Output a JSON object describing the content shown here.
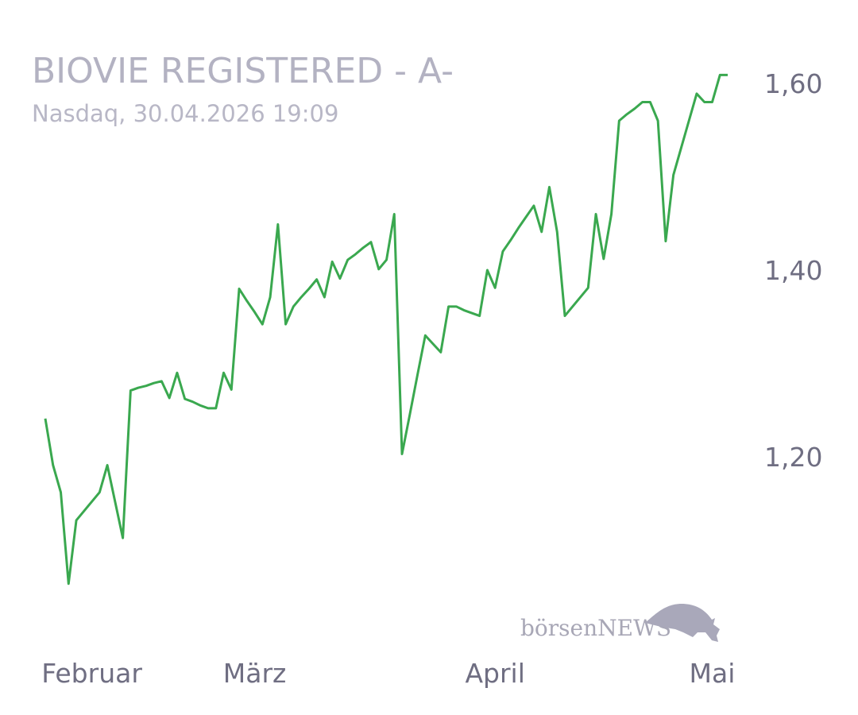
{
  "chart_data": {
    "type": "line",
    "title": "BIOVIE REGISTERED - A-",
    "subtitle": "Nasdaq, 30.04.2026 19:09",
    "watermark": "börsenNEWS",
    "categories": [
      null,
      null,
      null,
      null,
      null,
      null,
      "Februar",
      null,
      null,
      null,
      null,
      null,
      null,
      null,
      null,
      null,
      null,
      null,
      null,
      null,
      null,
      null,
      null,
      null,
      null,
      null,
      null,
      "März",
      null,
      null,
      null,
      null,
      null,
      null,
      null,
      null,
      null,
      null,
      null,
      null,
      null,
      null,
      null,
      null,
      null,
      null,
      null,
      null,
      null,
      null,
      null,
      null,
      null,
      null,
      null,
      null,
      null,
      null,
      "April",
      null,
      null,
      null,
      null,
      null,
      null,
      null,
      null,
      null,
      null,
      null,
      null,
      null,
      null,
      null,
      null,
      null,
      null,
      null,
      null,
      null,
      null,
      null,
      null,
      null,
      null,
      null,
      "Mai",
      null,
      null
    ],
    "values": [
      1.241,
      1.191,
      1.162,
      1.064,
      1.132,
      1.142,
      1.152,
      1.162,
      1.191,
      1.152,
      1.113,
      1.271,
      1.274,
      1.276,
      1.279,
      1.281,
      1.263,
      1.29,
      1.262,
      1.259,
      1.255,
      1.252,
      1.252,
      1.29,
      1.272,
      1.38,
      1.367,
      1.355,
      1.342,
      1.371,
      1.449,
      1.342,
      1.361,
      1.371,
      1.38,
      1.39,
      1.371,
      1.409,
      1.391,
      1.411,
      1.417,
      1.424,
      1.43,
      1.401,
      1.411,
      1.46,
      1.203,
      1.245,
      1.288,
      1.33,
      1.321,
      1.312,
      1.361,
      1.361,
      1.357,
      1.354,
      1.351,
      1.4,
      1.381,
      1.42,
      1.432,
      1.445,
      1.457,
      1.469,
      1.441,
      1.489,
      1.441,
      1.351,
      1.361,
      1.371,
      1.381,
      1.46,
      1.412,
      1.46,
      1.56,
      1.567,
      1.573,
      1.58,
      1.58,
      1.56,
      1.431,
      1.502,
      1.531,
      1.56,
      1.589,
      1.58,
      1.58,
      1.609,
      1.609
    ],
    "color": "#3aa84f",
    "ylim": [
      1.04,
      1.62
    ],
    "yticks": [
      {
        "value": 1.2,
        "label": "1,20"
      },
      {
        "value": 1.4,
        "label": "1,40"
      },
      {
        "value": 1.6,
        "label": "1,60"
      }
    ],
    "grid": false
  }
}
